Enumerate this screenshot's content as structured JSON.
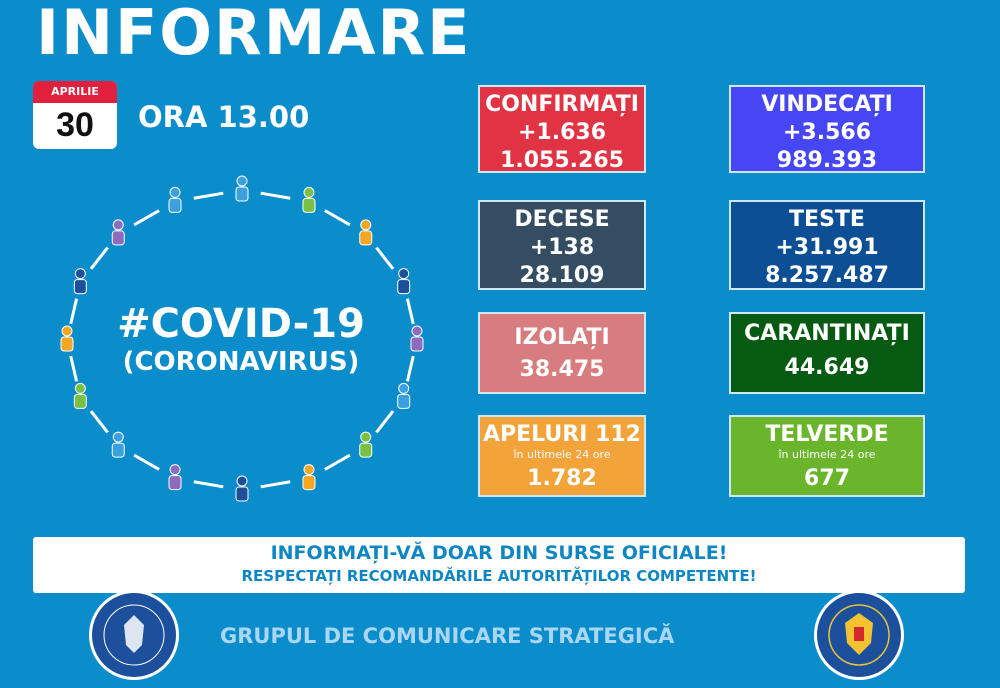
{
  "header": {
    "title": "INFORMARE",
    "month": "APRILIE",
    "day": "30",
    "time": "ORA 13.00"
  },
  "center": {
    "hashtag": "#COVID-19",
    "subtitle": "(CORONAVIRUS)",
    "figure_colors": [
      "#3aa0e0",
      "#7ac143",
      "#f5a623",
      "#1d4f9c",
      "#8e6bbf"
    ]
  },
  "cards": [
    {
      "label": "CONFIRMAȚI",
      "delta": "+1.636",
      "total": "1.055.265",
      "color": "#e03444"
    },
    {
      "label": "VINDECAȚI",
      "delta": "+3.566",
      "total": "989.393",
      "color": "#4646f4"
    },
    {
      "label": "DECESE",
      "delta": "+138",
      "total": "28.109",
      "color": "#344d62"
    },
    {
      "label": "TESTE",
      "delta": "+31.991",
      "total": "8.257.487",
      "color": "#0d4f95"
    },
    {
      "label": "IZOLAȚI",
      "total": "38.475",
      "color": "#d87d7f"
    },
    {
      "label": "CARANTINAȚI",
      "total": "44.649",
      "color": "#075a12"
    },
    {
      "label": "APELURI 112",
      "note": "în ultimele 24 ore",
      "total": "1.782",
      "color": "#f2a33a"
    },
    {
      "label": "TELVERDE",
      "note": "în ultimele 24 ore",
      "total": "677",
      "color": "#6bb52c"
    }
  ],
  "banner": {
    "line1": "INFORMAȚI-VĂ DOAR DIN SURSE OFICIALE!",
    "line2": "RESPECTAȚI RECOMANDĂRILE AUTORITĂȚILOR COMPETENTE!"
  },
  "footer": {
    "org": "GRUPUL DE COMUNICARE STRATEGICĂ",
    "logo_left": "GUVERNUL ROMÂNIEI",
    "logo_right": "DEPARTAMENTUL PENTRU SITUAȚII DE URGENȚĂ M.A.I."
  }
}
